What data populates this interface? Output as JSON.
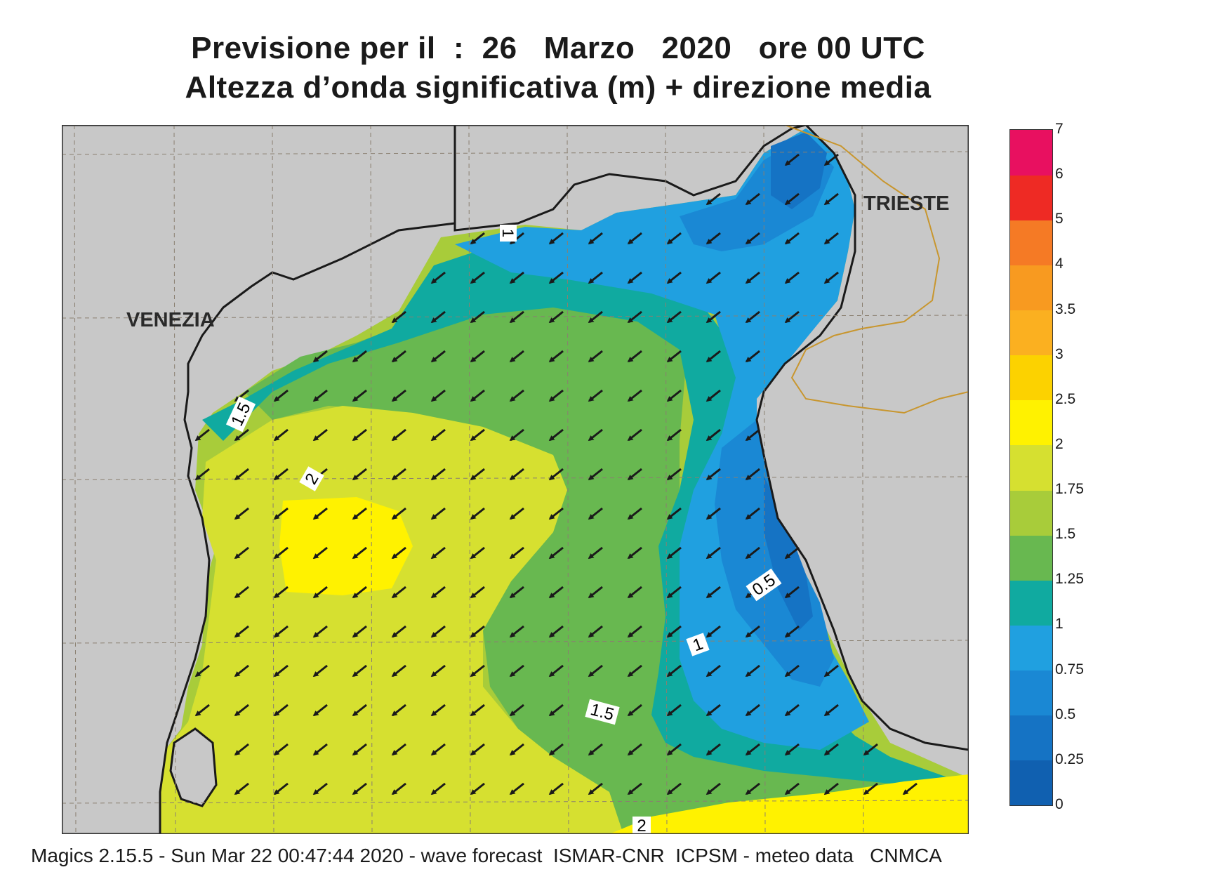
{
  "header": {
    "title_line1": "Previsione per il  :  26   Marzo   2020   ore 00 UTC",
    "title_line2": "Altezza d’onda significativa (m) + direzione media"
  },
  "map": {
    "cities": [
      {
        "name": "VENEZIA"
      },
      {
        "name": "TRIESTE"
      }
    ],
    "contour_labels": [
      "1",
      "1.5",
      "2",
      "0.5",
      "1",
      "1.5",
      "2"
    ],
    "arrow_direction": "south-west",
    "colors": {
      "land": "#c8c8c8",
      "coast": "#1a1a1a",
      "border": "#c8962e",
      "grid": "#8a7f70"
    }
  },
  "colorbar": {
    "levels": [
      {
        "label": "0",
        "color": "#1060b0"
      },
      {
        "label": "0.25",
        "color": "#1573c4"
      },
      {
        "label": "0.5",
        "color": "#1a88d4"
      },
      {
        "label": "0.75",
        "color": "#20a0e0"
      },
      {
        "label": "1",
        "color": "#10aaa0"
      },
      {
        "label": "1.25",
        "color": "#68b850"
      },
      {
        "label": "1.5",
        "color": "#a8cc3a"
      },
      {
        "label": "1.75",
        "color": "#d6e030"
      },
      {
        "label": "2",
        "color": "#fff200"
      },
      {
        "label": "2.5",
        "color": "#fcd200"
      },
      {
        "label": "3",
        "color": "#fbb020"
      },
      {
        "label": "3.5",
        "color": "#f89a20"
      },
      {
        "label": "4",
        "color": "#f57a25"
      },
      {
        "label": "5",
        "color": "#ee2a24"
      },
      {
        "label": "6",
        "color": "#e81060"
      },
      {
        "label": "7",
        "color": ""
      }
    ]
  },
  "footer": {
    "text": "Magics 2.15.5 - Sun Mar 22 00:47:44 2020 - wave forecast  ISMAR-CNR  ICPSM - meteo data   CNMCA"
  }
}
